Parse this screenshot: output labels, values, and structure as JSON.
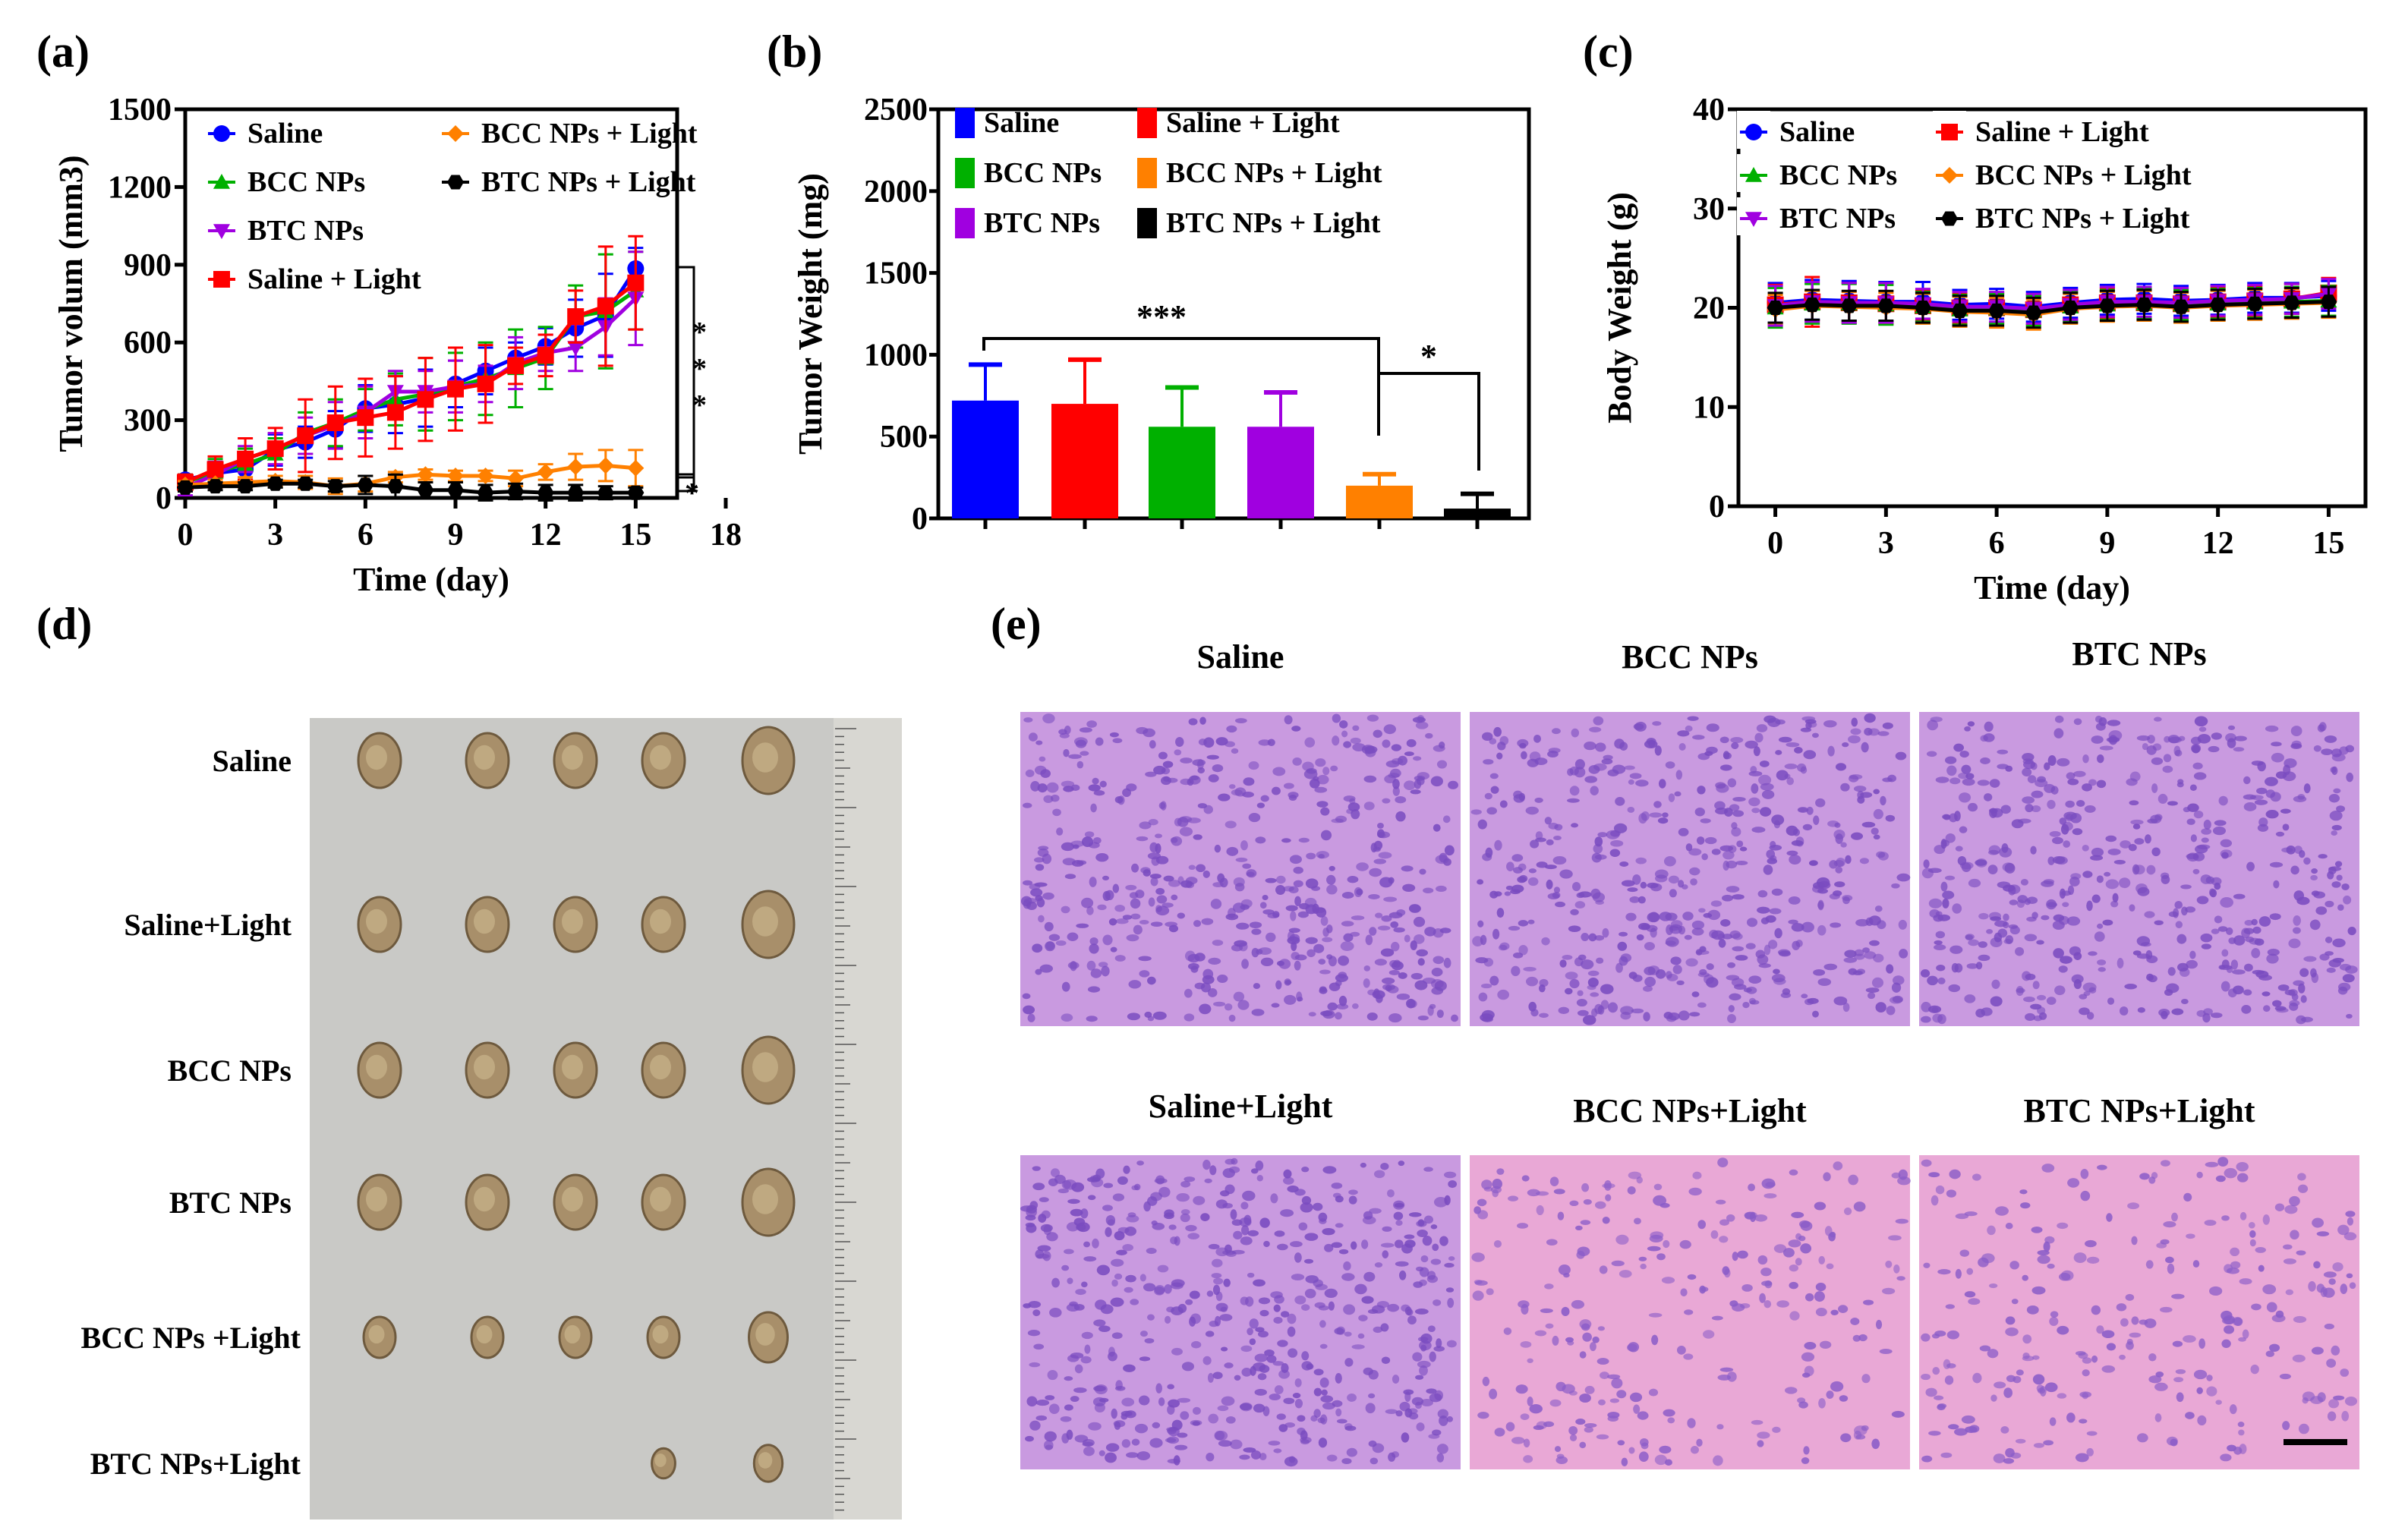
{
  "panel_labels": [
    "(a)",
    "(b)",
    "(c)",
    "(d)",
    "(e)"
  ],
  "colors": {
    "Saline": "#0000ff",
    "BCC NPs": "#00b000",
    "BTC NPs": "#a000e0",
    "Saline + Light": "#ff0000",
    "BCC NPs + Light": "#ff8000",
    "BTC NPs + Light": "#000000"
  },
  "chart_data": [
    {
      "type": "line",
      "title": "",
      "xlabel": "Time (day)",
      "ylabel": "Tumor volum (mm3)",
      "xlim": [
        0,
        18
      ],
      "ylim": [
        0,
        1500
      ],
      "xticks": [
        0,
        3,
        6,
        9,
        12,
        15,
        18
      ],
      "yticks": [
        0,
        300,
        600,
        900,
        1200,
        1500
      ],
      "x": [
        0,
        1,
        2,
        3,
        4,
        5,
        6,
        7,
        8,
        9,
        10,
        11,
        12,
        13,
        14,
        15
      ],
      "series": [
        {
          "name": "Saline",
          "marker": "circle",
          "values": [
            70,
            95,
            110,
            185,
            215,
            265,
            345,
            360,
            385,
            440,
            490,
            540,
            585,
            655,
            705,
            885
          ],
          "err": [
            20,
            40,
            50,
            60,
            60,
            70,
            90,
            110,
            110,
            90,
            90,
            60,
            70,
            110,
            160,
            80
          ]
        },
        {
          "name": "BCC NPs",
          "marker": "triangle-up",
          "values": [
            60,
            100,
            130,
            170,
            250,
            290,
            340,
            380,
            400,
            430,
            460,
            500,
            540,
            700,
            720,
            800
          ],
          "err": [
            30,
            50,
            60,
            60,
            80,
            90,
            80,
            100,
            140,
            130,
            140,
            150,
            120,
            120,
            220,
            150
          ]
        },
        {
          "name": "BTC NPs",
          "marker": "triangle-down",
          "values": [
            40,
            90,
            150,
            190,
            240,
            280,
            330,
            410,
            410,
            430,
            440,
            520,
            560,
            580,
            660,
            770
          ],
          "err": [
            30,
            50,
            50,
            60,
            70,
            90,
            100,
            80,
            80,
            100,
            70,
            100,
            70,
            90,
            110,
            180
          ]
        },
        {
          "name": "Saline + Light",
          "marker": "square",
          "values": [
            60,
            110,
            150,
            190,
            240,
            290,
            310,
            330,
            380,
            420,
            440,
            510,
            550,
            700,
            740,
            830
          ],
          "err": [
            30,
            50,
            80,
            80,
            140,
            140,
            150,
            140,
            160,
            160,
            150,
            70,
            80,
            100,
            230,
            180
          ]
        },
        {
          "name": "BCC NPs + Light",
          "marker": "diamond",
          "values": [
            50,
            55,
            60,
            65,
            60,
            45,
            55,
            80,
            90,
            85,
            85,
            75,
            100,
            120,
            125,
            115
          ],
          "err": [
            15,
            15,
            20,
            20,
            25,
            30,
            30,
            20,
            20,
            20,
            20,
            30,
            30,
            50,
            60,
            70
          ]
        },
        {
          "name": "BTC NPs + Light",
          "marker": "hexagon",
          "values": [
            40,
            45,
            45,
            55,
            55,
            45,
            50,
            45,
            30,
            30,
            20,
            25,
            20,
            20,
            20,
            20
          ],
          "err": [
            15,
            15,
            15,
            15,
            15,
            20,
            35,
            45,
            30,
            30,
            30,
            30,
            30,
            30,
            25,
            20
          ]
        }
      ],
      "legend": [
        "Saline",
        "BCC NPs + Light",
        "BCC NPs",
        "BTC NPs  + Light",
        "BTC NPs",
        "Saline + Light"
      ],
      "annotations": [
        "*",
        "*",
        "*",
        "*"
      ]
    },
    {
      "type": "bar",
      "title": "",
      "xlabel": "",
      "ylabel": "Tumor Weight (mg)",
      "ylim": [
        0,
        2500
      ],
      "yticks": [
        0,
        500,
        1000,
        1500,
        2000,
        2500
      ],
      "categories": [
        "Saline",
        "Saline + Light",
        "BCC NPs",
        "BTC NPs",
        "BCC NPs + Light",
        "BTC NPs + Light"
      ],
      "values": [
        720,
        700,
        560,
        560,
        200,
        60
      ],
      "err": [
        220,
        270,
        240,
        210,
        70,
        90
      ],
      "legend": [
        "Saline",
        "Saline + Light",
        "BCC NPs",
        "BCC NPs + Light",
        "BTC NPs",
        "BTC NPs + Light"
      ],
      "annotations": [
        "***",
        "*"
      ]
    },
    {
      "type": "line",
      "title": "",
      "xlabel": "Time (day)",
      "ylabel": "Body Weight (g)",
      "xlim": [
        -1,
        16
      ],
      "ylim": [
        0,
        40
      ],
      "xticks": [
        0,
        3,
        6,
        9,
        12,
        15
      ],
      "yticks": [
        0,
        10,
        20,
        30,
        40
      ],
      "x": [
        0,
        1,
        2,
        3,
        4,
        5,
        6,
        7,
        8,
        9,
        10,
        11,
        12,
        13,
        14,
        15
      ],
      "series": [
        {
          "name": "Saline",
          "marker": "circle",
          "values": [
            20.5,
            20.8,
            20.7,
            20.6,
            20.6,
            20.3,
            20.4,
            20.1,
            20.5,
            20.8,
            20.9,
            20.7,
            20.8,
            21,
            21,
            21.2
          ],
          "err": [
            2,
            2,
            2,
            2,
            2,
            1.5,
            1.5,
            1.5,
            1.5,
            1.5,
            1.5,
            1.5,
            1.5,
            1.5,
            1.5,
            1.5
          ]
        },
        {
          "name": "Saline + Light",
          "marker": "square",
          "values": [
            20.3,
            20.6,
            20.5,
            20.4,
            20.2,
            20,
            20,
            19.8,
            20.3,
            20.5,
            20.5,
            20.4,
            20.6,
            20.7,
            20.9,
            21.5
          ],
          "err": [
            2,
            2.5,
            2,
            2,
            1.5,
            1.5,
            1.5,
            1.5,
            1.5,
            1.5,
            1.5,
            1.5,
            1.5,
            1.5,
            1.5,
            1.5
          ]
        },
        {
          "name": "BCC NPs",
          "marker": "triangle-up",
          "values": [
            20,
            20.4,
            20.4,
            20.3,
            20.1,
            19.8,
            19.9,
            19.7,
            20.1,
            20.3,
            20.4,
            20.3,
            20.4,
            20.5,
            20.6,
            20.7
          ],
          "err": [
            2,
            2,
            2,
            2,
            1.5,
            1.5,
            1.5,
            1.5,
            1.5,
            1.5,
            1.5,
            1.5,
            1.5,
            1.5,
            1.5,
            1.5
          ]
        },
        {
          "name": "BCC NPs + Light",
          "marker": "diamond",
          "values": [
            19.8,
            20.2,
            20.1,
            20,
            19.9,
            19.6,
            19.5,
            19.3,
            19.9,
            20.1,
            20.2,
            20,
            20.2,
            20.3,
            20.4,
            20.5
          ],
          "err": [
            1.5,
            1.5,
            1.5,
            1.5,
            1.5,
            1.5,
            1.5,
            1.5,
            1.5,
            1.5,
            1.5,
            1.5,
            1.5,
            1.5,
            1.5,
            1.5
          ]
        },
        {
          "name": "BTC NPs",
          "marker": "triangle-down",
          "values": [
            20.2,
            20.6,
            20.5,
            20.5,
            20.4,
            20.1,
            20.1,
            19.9,
            20.3,
            20.6,
            20.6,
            20.5,
            20.7,
            20.8,
            20.9,
            21.4
          ],
          "err": [
            2,
            2,
            2,
            2,
            1.5,
            1.5,
            1.5,
            1.5,
            1.5,
            1.5,
            1.5,
            1.5,
            1.5,
            1.5,
            1.5,
            1.5
          ]
        },
        {
          "name": "BTC NPs  + Light",
          "marker": "hexagon",
          "values": [
            20,
            20.3,
            20.2,
            20.2,
            20,
            19.7,
            19.7,
            19.5,
            20,
            20.2,
            20.3,
            20.1,
            20.3,
            20.4,
            20.5,
            20.6
          ],
          "err": [
            1.5,
            1.5,
            1.5,
            1.5,
            1.5,
            1.5,
            1.5,
            1.5,
            1.5,
            1.5,
            1.5,
            1.5,
            1.5,
            1.5,
            1.5,
            1.5
          ]
        }
      ],
      "legend": [
        "Saline",
        "Saline + Light",
        "BCC NPs",
        "BCC NPs + Light",
        "BTC NPs",
        "BTC NPs  + Light"
      ]
    }
  ],
  "photo": {
    "rows": [
      "Saline",
      "Saline+Light",
      "BCC NPs",
      "BTC NPs",
      "BCC NPs +Light",
      "BTC NPs+Light"
    ],
    "tumor_counts": [
      5,
      5,
      5,
      5,
      5,
      2
    ]
  },
  "histology": {
    "titles": [
      "Saline",
      "BCC NPs",
      "BTC NPs",
      "Saline+Light",
      "BCC NPs+Light",
      "BTC NPs+Light"
    ]
  }
}
